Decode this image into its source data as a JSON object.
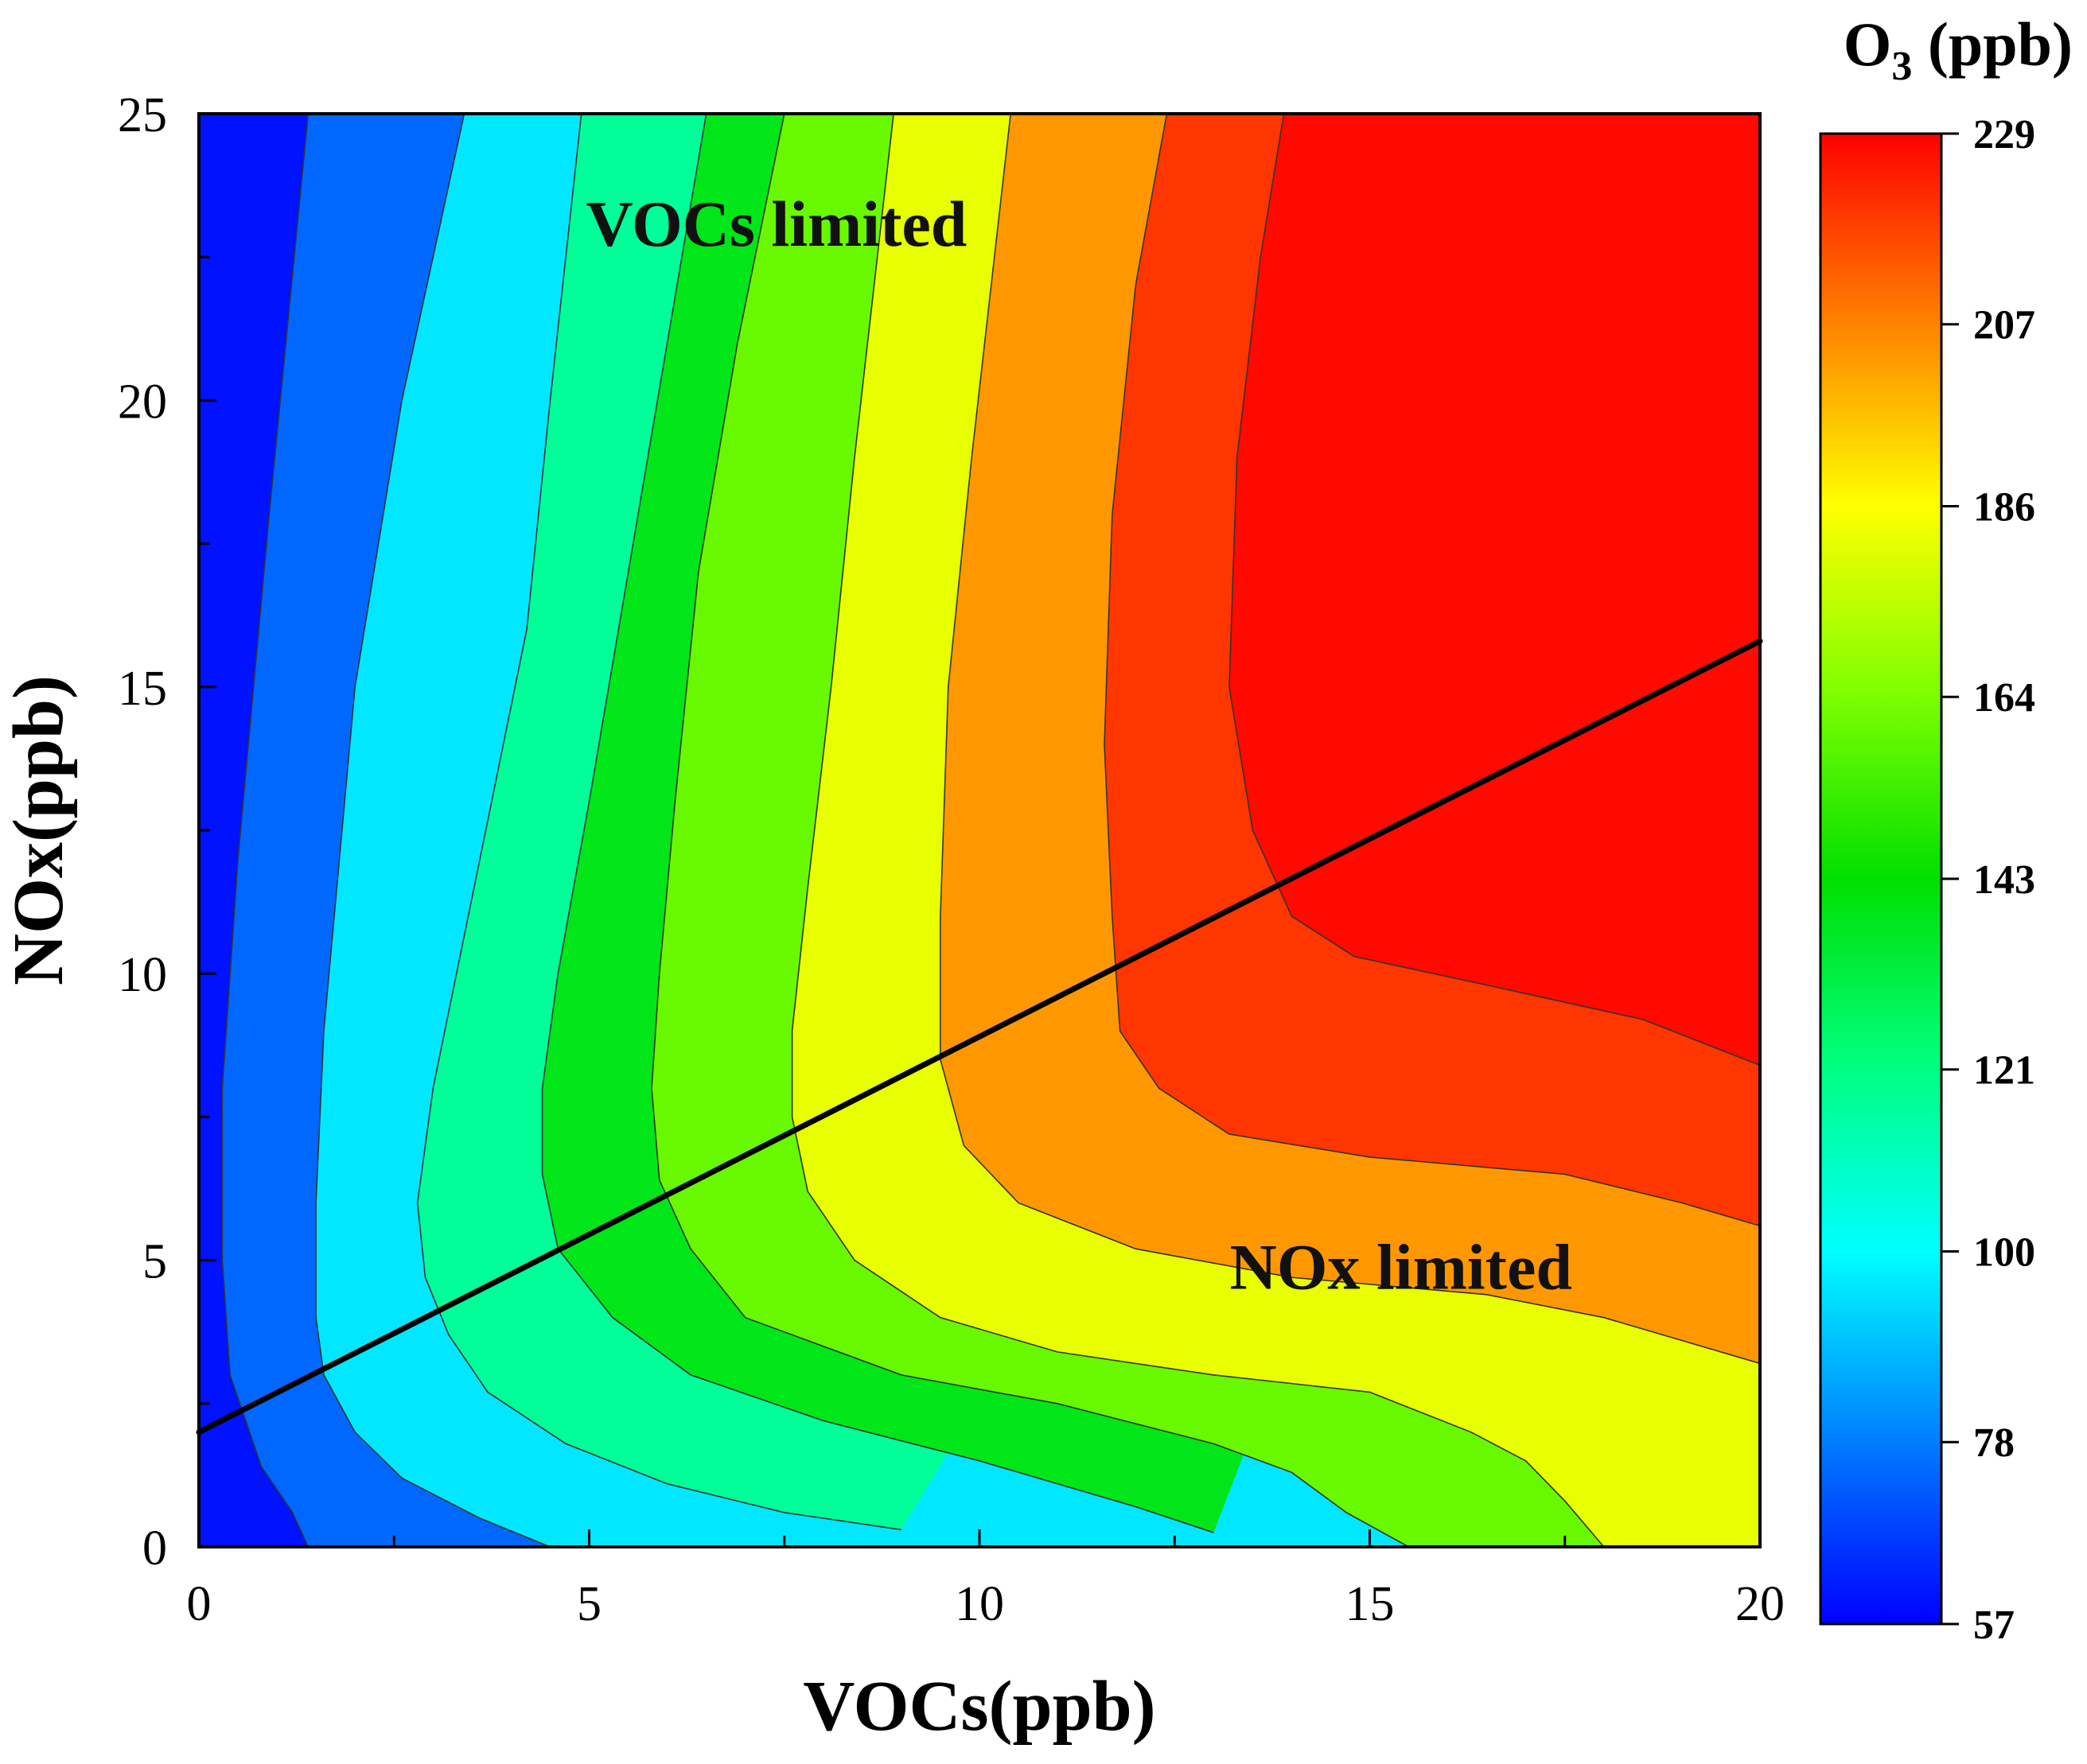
{
  "chart_data": {
    "type": "heatmap",
    "subtype": "ozone isopleth (EKMA) contour plot",
    "title": "",
    "xlabel": "VOCs(ppb)",
    "ylabel": "NOx(ppb)",
    "xlim": [
      0,
      20
    ],
    "ylim": [
      0,
      25
    ],
    "x_ticks": [
      0,
      5,
      10,
      15,
      20
    ],
    "y_ticks": [
      0,
      5,
      10,
      15,
      20,
      25
    ],
    "x_minor_step": 2.5,
    "y_minor_step": 2.5,
    "colorbar": {
      "title_main": "O",
      "title_sub": "3",
      "title_unit": " (ppb)",
      "min": 57,
      "max": 229,
      "ticks": [
        57,
        78,
        100,
        121,
        143,
        164,
        186,
        207,
        229
      ],
      "colors": [
        "#0000ff",
        "#0080ff",
        "#00ffff",
        "#00ff80",
        "#00e000",
        "#80ff00",
        "#ffff00",
        "#ff8000",
        "#ff0000"
      ]
    },
    "regime_line": {
      "label": "VOC/NOx ridge line",
      "points": [
        [
          0,
          2.0
        ],
        [
          20,
          15.8
        ]
      ]
    },
    "annotations": [
      {
        "text": "VOCs limited",
        "x": 7.4,
        "y": 22.7
      },
      {
        "text": "NOx limited",
        "x": 15.4,
        "y": 4.5
      }
    ],
    "contour_levels": [
      {
        "value": 64,
        "points": [
          [
            1.4,
            0
          ],
          [
            1.2,
            0.6
          ],
          [
            0.8,
            1.4
          ],
          [
            0.6,
            2.2
          ],
          [
            0.4,
            3.0
          ],
          [
            0.3,
            5.0
          ],
          [
            0.3,
            8.0
          ],
          [
            0.5,
            12.0
          ],
          [
            0.9,
            18.0
          ],
          [
            1.4,
            25
          ]
        ]
      },
      {
        "value": 85,
        "points": [
          [
            4.5,
            0
          ],
          [
            3.6,
            0.5
          ],
          [
            2.6,
            1.2
          ],
          [
            2.0,
            2.0
          ],
          [
            1.6,
            3.0
          ],
          [
            1.5,
            4.0
          ],
          [
            1.5,
            6.0
          ],
          [
            1.6,
            9.0
          ],
          [
            2.0,
            15.0
          ],
          [
            2.6,
            20.0
          ],
          [
            3.4,
            25
          ]
        ]
      },
      {
        "value": 107,
        "points": [
          [
            9.0,
            0.3
          ],
          [
            7.5,
            0.6
          ],
          [
            6.0,
            1.1
          ],
          [
            4.7,
            1.8
          ],
          [
            3.7,
            2.7
          ],
          [
            3.2,
            3.7
          ],
          [
            2.9,
            4.7
          ],
          [
            2.8,
            6.0
          ],
          [
            3.0,
            8.0
          ],
          [
            3.6,
            12.0
          ],
          [
            4.2,
            16.0
          ],
          [
            4.5,
            20.0
          ],
          [
            4.9,
            25
          ]
        ]
      },
      {
        "value": 128,
        "points": [
          [
            13.0,
            0.25
          ],
          [
            12.0,
            0.7
          ],
          [
            10.0,
            1.5
          ],
          [
            8.0,
            2.2
          ],
          [
            6.3,
            3.0
          ],
          [
            5.3,
            4.0
          ],
          [
            4.6,
            5.2
          ],
          [
            4.4,
            6.5
          ],
          [
            4.4,
            8.0
          ],
          [
            4.6,
            10.0
          ],
          [
            5.0,
            13.0
          ],
          [
            5.5,
            17.0
          ],
          [
            6.0,
            21.0
          ],
          [
            6.5,
            25
          ]
        ]
      },
      {
        "value": 150,
        "points": [
          [
            15.5,
            0
          ],
          [
            14.7,
            0.6
          ],
          [
            14.0,
            1.3
          ],
          [
            13.0,
            1.8
          ],
          [
            11.0,
            2.5
          ],
          [
            9.0,
            3.0
          ],
          [
            7.0,
            4.0
          ],
          [
            6.3,
            5.2
          ],
          [
            5.9,
            6.4
          ],
          [
            5.8,
            8.0
          ],
          [
            5.9,
            10.0
          ],
          [
            6.1,
            13.0
          ],
          [
            6.4,
            17.0
          ],
          [
            6.9,
            21.0
          ],
          [
            7.5,
            25
          ]
        ]
      },
      {
        "value": 171,
        "points": [
          [
            18.0,
            0
          ],
          [
            17.5,
            0.8
          ],
          [
            17.0,
            1.5
          ],
          [
            16.3,
            2.0
          ],
          [
            15.0,
            2.7
          ],
          [
            13.0,
            3.0
          ],
          [
            11.0,
            3.4
          ],
          [
            9.5,
            4.0
          ],
          [
            8.4,
            5.0
          ],
          [
            7.8,
            6.2
          ],
          [
            7.6,
            7.5
          ],
          [
            7.6,
            9.0
          ],
          [
            7.8,
            11.5
          ],
          [
            8.1,
            15.0
          ],
          [
            8.4,
            19.0
          ],
          [
            8.9,
            25
          ]
        ]
      },
      {
        "value": 193,
        "points": [
          [
            20,
            3.2
          ],
          [
            18.0,
            4.0
          ],
          [
            16.5,
            4.4
          ],
          [
            14.0,
            4.7
          ],
          [
            12.0,
            5.2
          ],
          [
            10.5,
            6.0
          ],
          [
            9.8,
            7.0
          ],
          [
            9.5,
            8.5
          ],
          [
            9.5,
            11.0
          ],
          [
            9.6,
            15.0
          ],
          [
            9.9,
            19.0
          ],
          [
            10.4,
            25
          ]
        ]
      },
      {
        "value": 214,
        "points": [
          [
            20,
            5.6
          ],
          [
            19.0,
            6.0
          ],
          [
            17.5,
            6.5
          ],
          [
            15.0,
            6.8
          ],
          [
            13.2,
            7.2
          ],
          [
            12.3,
            8.0
          ],
          [
            11.8,
            9.0
          ],
          [
            11.7,
            11.0
          ],
          [
            11.6,
            14.0
          ],
          [
            11.7,
            18.0
          ],
          [
            12.0,
            22.0
          ],
          [
            12.4,
            25
          ]
        ]
      },
      {
        "value": 226,
        "points": [
          [
            20,
            8.4
          ],
          [
            18.5,
            9.2
          ],
          [
            16.5,
            9.8
          ],
          [
            14.8,
            10.3
          ],
          [
            14.0,
            11.0
          ],
          [
            13.5,
            12.5
          ],
          [
            13.2,
            15.0
          ],
          [
            13.3,
            19.0
          ],
          [
            13.6,
            22.5
          ],
          [
            13.9,
            25
          ]
        ]
      }
    ]
  }
}
